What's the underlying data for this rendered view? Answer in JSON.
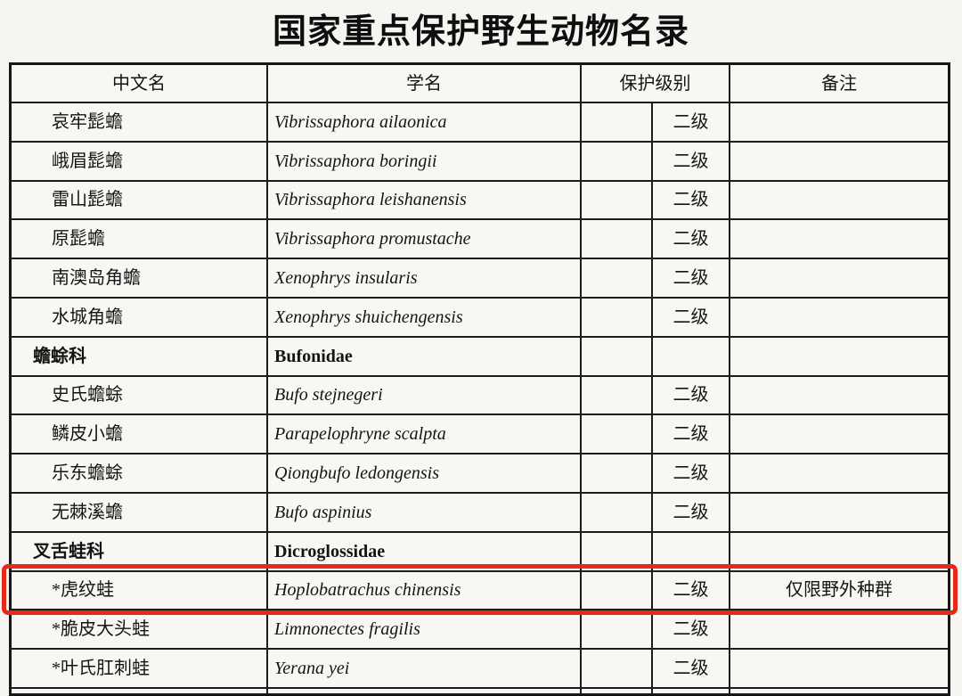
{
  "page": {
    "title": "国家重点保护野生动物名录"
  },
  "table": {
    "headers": {
      "chinese_name": "中文名",
      "scientific_name": "学名",
      "protection_level": "保护级别",
      "remarks": "备注"
    },
    "rows": [
      {
        "type": "species",
        "chinese_name": "哀牢髭蟾",
        "scientific_name": "Vibrissaphora ailaonica",
        "level": "二级",
        "remark": ""
      },
      {
        "type": "species",
        "chinese_name": "峨眉髭蟾",
        "scientific_name": "Vibrissaphora boringii",
        "level": "二级",
        "remark": ""
      },
      {
        "type": "species",
        "chinese_name": "雷山髭蟾",
        "scientific_name": "Vibrissaphora leishanensis",
        "level": "二级",
        "remark": ""
      },
      {
        "type": "species",
        "chinese_name": "原髭蟾",
        "scientific_name": "Vibrissaphora promustache",
        "level": "二级",
        "remark": ""
      },
      {
        "type": "species",
        "chinese_name": "南澳岛角蟾",
        "scientific_name": "Xenophrys insularis",
        "level": "二级",
        "remark": ""
      },
      {
        "type": "species",
        "chinese_name": "水城角蟾",
        "scientific_name": "Xenophrys shuichengensis",
        "level": "二级",
        "remark": ""
      },
      {
        "type": "family",
        "chinese_name": "蟾蜍科",
        "scientific_name": "Bufonidae",
        "level": "",
        "remark": ""
      },
      {
        "type": "species",
        "chinese_name": "史氏蟾蜍",
        "scientific_name": "Bufo stejnegeri",
        "level": "二级",
        "remark": ""
      },
      {
        "type": "species",
        "chinese_name": "鳞皮小蟾",
        "scientific_name": "Parapelophryne scalpta",
        "level": "二级",
        "remark": ""
      },
      {
        "type": "species",
        "chinese_name": "乐东蟾蜍",
        "scientific_name": "Qiongbufo ledongensis",
        "level": "二级",
        "remark": ""
      },
      {
        "type": "species",
        "chinese_name": "无棘溪蟾",
        "scientific_name": "Bufo aspinius",
        "level": "二级",
        "remark": ""
      },
      {
        "type": "family",
        "chinese_name": "叉舌蛙科",
        "scientific_name": "Dicroglossidae",
        "level": "",
        "remark": ""
      },
      {
        "type": "species",
        "chinese_name": "*虎纹蛙",
        "scientific_name": "Hoplobatrachus chinensis",
        "level": "二级",
        "remark": "仅限野外种群",
        "highlighted": true
      },
      {
        "type": "species",
        "chinese_name": "*脆皮大头蛙",
        "scientific_name": "Limnonectes fragilis",
        "level": "二级",
        "remark": ""
      },
      {
        "type": "species",
        "chinese_name": "*叶氏肛刺蛙",
        "scientific_name": "Yerana yei",
        "level": "二级",
        "remark": ""
      }
    ],
    "highlight_color": "#e8281a"
  }
}
